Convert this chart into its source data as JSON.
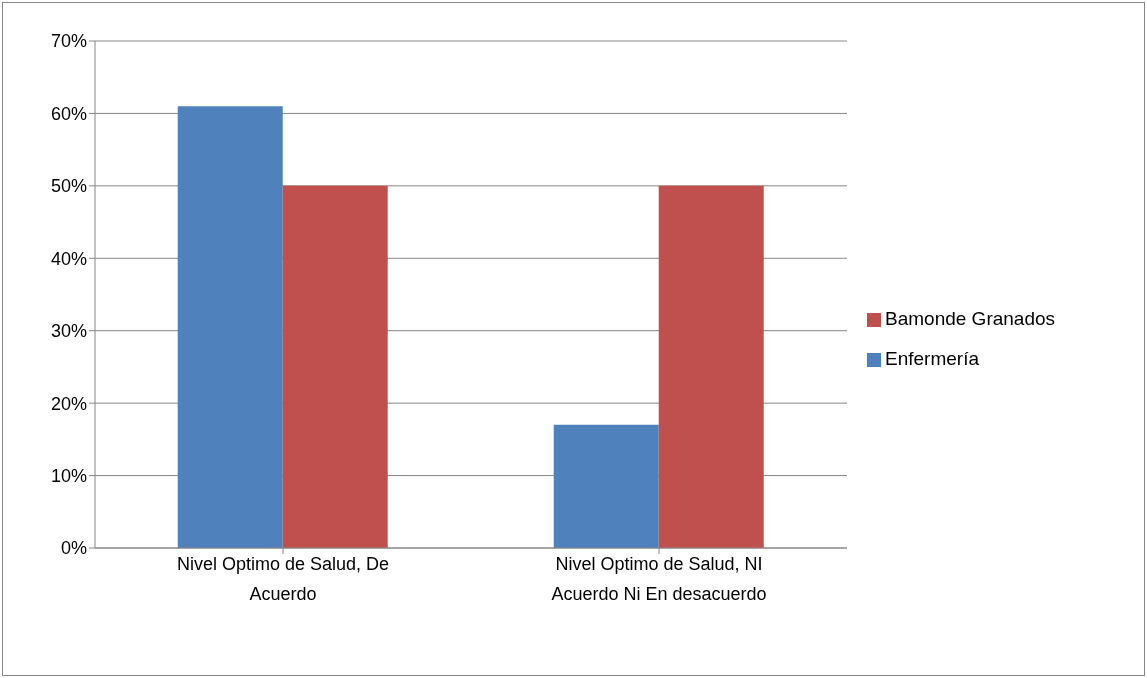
{
  "chart_data": {
    "type": "bar",
    "categories": [
      "Nivel Optimo de Salud, De Acuerdo",
      "Nivel Optimo de Salud, NI Acuerdo Ni En desacuerdo"
    ],
    "series": [
      {
        "name": "Enfermería",
        "color": "#4f81bd",
        "values": [
          61,
          17
        ]
      },
      {
        "name": "Bamonde Granados",
        "color": "#c0504d",
        "values": [
          50,
          50
        ]
      }
    ],
    "ylim": [
      0,
      70
    ],
    "yticks": [
      {
        "value": 0,
        "label": "0%"
      },
      {
        "value": 10,
        "label": "10%"
      },
      {
        "value": 20,
        "label": "20%"
      },
      {
        "value": 30,
        "label": "30%"
      },
      {
        "value": 40,
        "label": "40%"
      },
      {
        "value": 50,
        "label": "50%"
      },
      {
        "value": 60,
        "label": "60%"
      },
      {
        "value": 70,
        "label": "70%"
      }
    ],
    "grid": "y",
    "legend": "right"
  }
}
